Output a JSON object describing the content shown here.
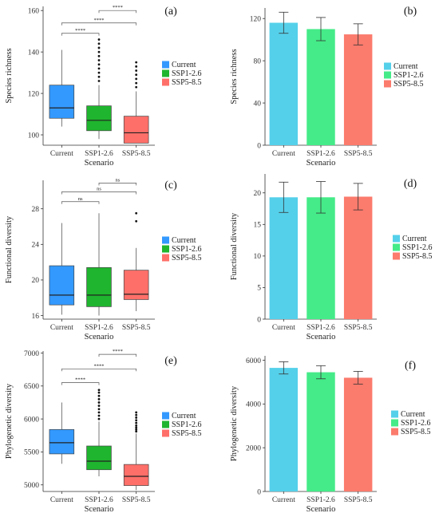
{
  "chart_data": [
    {
      "panel": "(a)",
      "type": "box",
      "categories": [
        "Current",
        "SSP1-2.6",
        "SSP5-8.5"
      ],
      "xlabel": "Scenario",
      "ylabel": "Species richness",
      "ylim": [
        95,
        162
      ],
      "yticks": [
        100,
        120,
        140,
        160
      ],
      "colors": [
        "#3399ff",
        "#1fb52e",
        "#ff6f69"
      ],
      "legend": [
        "Current",
        "SSP1-2.6",
        "SSP5-8.5"
      ],
      "boxes": [
        {
          "q1": 108,
          "median": 113,
          "q3": 124,
          "lo": 104,
          "hi": 141,
          "outliers": []
        },
        {
          "q1": 102,
          "median": 107,
          "q3": 114,
          "lo": 98,
          "hi": 124,
          "outliers": [
            126,
            128,
            130,
            132,
            134,
            136,
            138,
            140,
            142,
            144,
            146
          ]
        },
        {
          "q1": 96,
          "median": 101,
          "q3": 109,
          "lo": 96,
          "hi": 121,
          "outliers": [
            123,
            125,
            127,
            129,
            131,
            133,
            135
          ]
        }
      ],
      "sig": [
        {
          "from": 0,
          "to": 1,
          "label": "****",
          "y": 149
        },
        {
          "from": 0,
          "to": 2,
          "label": "****",
          "y": 154
        },
        {
          "from": 1,
          "to": 2,
          "label": "****",
          "y": 160
        }
      ]
    },
    {
      "panel": "(b)",
      "type": "bar",
      "categories": [
        "Current",
        "SSP1-2.6",
        "SSP5-8.5"
      ],
      "xlabel": "Scenario",
      "ylabel": "Species richness",
      "ylim": [
        0,
        130
      ],
      "yticks": [
        0,
        40,
        80,
        120
      ],
      "colors": [
        "#55d0ea",
        "#45eb88",
        "#fb7b6d"
      ],
      "legend": [
        "Current",
        "SSP1-2.6",
        "SSP5-8.5"
      ],
      "values": [
        116,
        110,
        105
      ],
      "errors": [
        10,
        11,
        10
      ]
    },
    {
      "panel": "(c)",
      "type": "box",
      "categories": [
        "Current",
        "SSP1-2.6",
        "SSP5-8.5"
      ],
      "xlabel": "Scenario",
      "ylabel": "Functional diversity",
      "ylim": [
        15.6,
        31.2
      ],
      "yticks": [
        16,
        20,
        24,
        28
      ],
      "colors": [
        "#3399ff",
        "#1fb52e",
        "#ff6f69"
      ],
      "legend": [
        "Current",
        "SSP1-2.6",
        "SSP5-8.5"
      ],
      "boxes": [
        {
          "q1": 17.2,
          "median": 18.3,
          "q3": 21.6,
          "lo": 16.1,
          "hi": 26.4,
          "outliers": []
        },
        {
          "q1": 17.0,
          "median": 18.3,
          "q3": 21.4,
          "lo": 16.0,
          "hi": 27.5,
          "outliers": []
        },
        {
          "q1": 17.8,
          "median": 18.4,
          "q3": 21.1,
          "lo": 16.5,
          "hi": 23.6,
          "outliers": [
            26.6,
            27.5
          ]
        }
      ],
      "sig": [
        {
          "from": 0,
          "to": 1,
          "label": "ns",
          "y": 28.8
        },
        {
          "from": 0,
          "to": 2,
          "label": "ns",
          "y": 29.9
        },
        {
          "from": 1,
          "to": 2,
          "label": "ns",
          "y": 30.9
        }
      ]
    },
    {
      "panel": "(d)",
      "type": "bar",
      "categories": [
        "Current",
        "SSP1-2.6",
        "SSP5-8.5"
      ],
      "xlabel": "Scenario",
      "ylabel": "Functional diversity",
      "ylim": [
        0,
        23
      ],
      "yticks": [
        0,
        5,
        10,
        15,
        20
      ],
      "colors": [
        "#55d0ea",
        "#45eb88",
        "#fb7b6d"
      ],
      "legend": [
        "Current",
        "SSP1-2.6",
        "SSP5-8.5"
      ],
      "values": [
        19.3,
        19.3,
        19.4
      ],
      "errors": [
        2.4,
        2.5,
        2.1
      ]
    },
    {
      "panel": "(e)",
      "type": "box",
      "categories": [
        "Current",
        "SSP1-2.6",
        "SSP5-8.5"
      ],
      "xlabel": "Scenario",
      "ylabel": "Phylogenetic diversity",
      "ylim": [
        4900,
        7030
      ],
      "yticks": [
        5000,
        5500,
        6000,
        6500,
        7000
      ],
      "colors": [
        "#3399ff",
        "#1fb52e",
        "#ff6f69"
      ],
      "legend": [
        "Current",
        "SSP1-2.6",
        "SSP5-8.5"
      ],
      "boxes": [
        {
          "q1": 5470,
          "median": 5640,
          "q3": 5840,
          "lo": 5320,
          "hi": 6250,
          "outliers": []
        },
        {
          "q1": 5230,
          "median": 5360,
          "q3": 5590,
          "lo": 5130,
          "hi": 5960,
          "outliers": [
            6000,
            6050,
            6100,
            6150,
            6200,
            6250,
            6300,
            6350,
            6400,
            6440
          ]
        },
        {
          "q1": 4990,
          "median": 5130,
          "q3": 5310,
          "lo": 4920,
          "hi": 5780,
          "outliers": [
            5810,
            5840,
            5870,
            5900,
            5940,
            5980,
            6020,
            6060,
            6100
          ]
        }
      ],
      "sig": [
        {
          "from": 0,
          "to": 1,
          "label": "****",
          "y": 6550
        },
        {
          "from": 0,
          "to": 2,
          "label": "****",
          "y": 6760
        },
        {
          "from": 1,
          "to": 2,
          "label": "****",
          "y": 6980
        }
      ]
    },
    {
      "panel": "(f)",
      "type": "bar",
      "categories": [
        "Current",
        "SSP1-2.6",
        "SSP5-8.5"
      ],
      "xlabel": "Scenario",
      "ylabel": "Phylogenetic diversity",
      "ylim": [
        0,
        6200
      ],
      "yticks": [
        0,
        2000,
        4000,
        6000
      ],
      "colors": [
        "#55d0ea",
        "#45eb88",
        "#fb7b6d"
      ],
      "legend": [
        "Current",
        "SSP1-2.6",
        "SSP5-8.5"
      ],
      "values": [
        5650,
        5450,
        5200
      ],
      "errors": [
        280,
        300,
        290
      ]
    }
  ]
}
